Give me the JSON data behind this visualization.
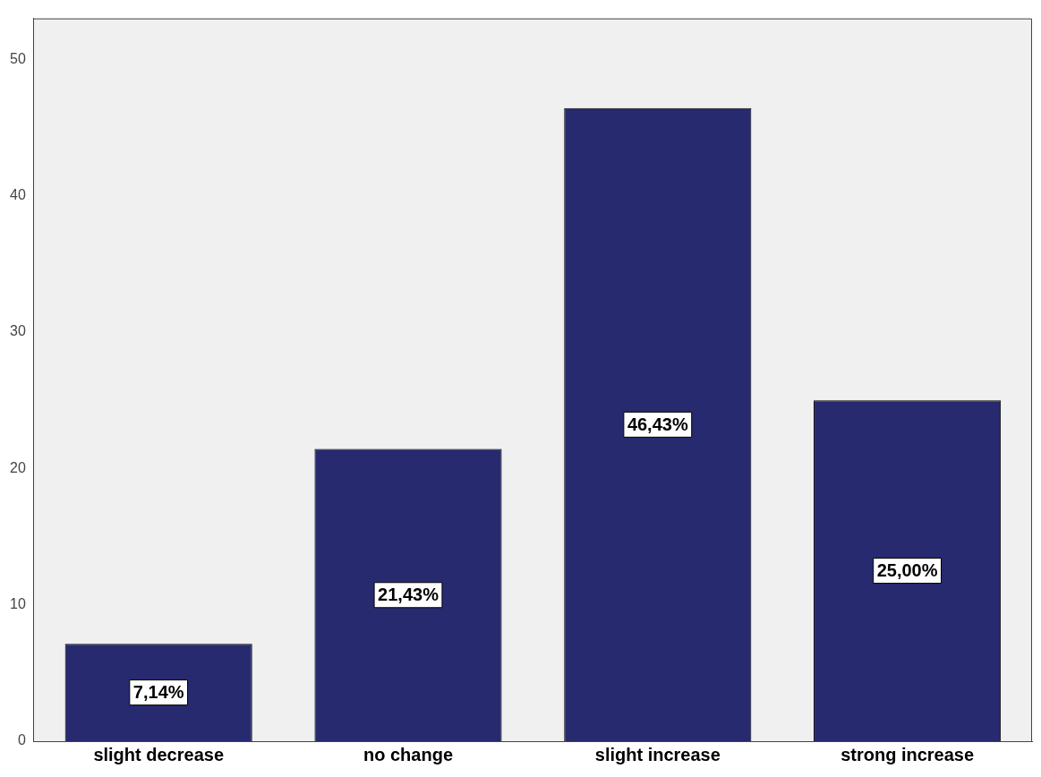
{
  "chart_data": {
    "type": "bar",
    "categories": [
      "slight decrease",
      "no change",
      "slight increase",
      "strong increase"
    ],
    "values": [
      7.14,
      21.43,
      46.43,
      25.0
    ],
    "value_labels": [
      "7,14%",
      "21,43%",
      "46,43%",
      "25,00%"
    ],
    "color": "#272a6e",
    "ylim": [
      0,
      53
    ],
    "yticks": [
      0,
      10,
      20,
      30,
      40,
      50
    ],
    "grid": false,
    "legend": false
  }
}
